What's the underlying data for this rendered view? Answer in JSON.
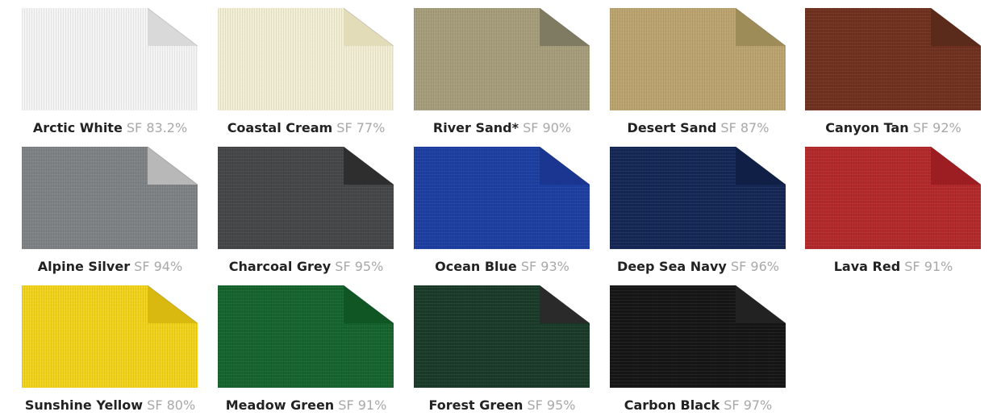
{
  "swatches": [
    {
      "name": "Arctic White",
      "shade": "SF 83.2%",
      "color": "#f4f4f4",
      "back": "#d9d9d9"
    },
    {
      "name": "Coastal Cream",
      "shade": "SF 77%",
      "color": "#f2eed3",
      "back": "#e2dcb8"
    },
    {
      "name": "River Sand*",
      "shade": "SF 90%",
      "color": "#a69d7b",
      "back": "#7f7a62"
    },
    {
      "name": "Desert Sand",
      "shade": "SF 87%",
      "color": "#bba46f",
      "back": "#9e8c58"
    },
    {
      "name": "Canyon Tan",
      "shade": "SF 92%",
      "color": "#6f301f",
      "back": "#5a2a1a"
    },
    {
      "name": "Alpine Silver",
      "shade": "SF 94%",
      "color": "#7e8285",
      "back": "#b8b8b8"
    },
    {
      "name": "Charcoal Grey",
      "shade": "SF 95%",
      "color": "#444648",
      "back": "#2e2e2e"
    },
    {
      "name": "Ocean Blue",
      "shade": "SF 93%",
      "color": "#1d3fa2",
      "back": "#1a3690"
    },
    {
      "name": "Deep Sea Navy",
      "shade": "SF 96%",
      "color": "#142755",
      "back": "#0f1f46"
    },
    {
      "name": "Lava Red",
      "shade": "SF 91%",
      "color": "#b4292b",
      "back": "#9c1e22"
    },
    {
      "name": "Sunshine Yellow",
      "shade": "SF 80%",
      "color": "#f2d31b",
      "back": "#d9b80f"
    },
    {
      "name": "Meadow Green",
      "shade": "SF 91%",
      "color": "#16642d",
      "back": "#0f5624"
    },
    {
      "name": "Forest Green",
      "shade": "SF 95%",
      "color": "#1b3b2a",
      "back": "#2a2a2a"
    },
    {
      "name": "Carbon Black",
      "shade": "SF 97%",
      "color": "#161616",
      "back": "#222222"
    }
  ]
}
